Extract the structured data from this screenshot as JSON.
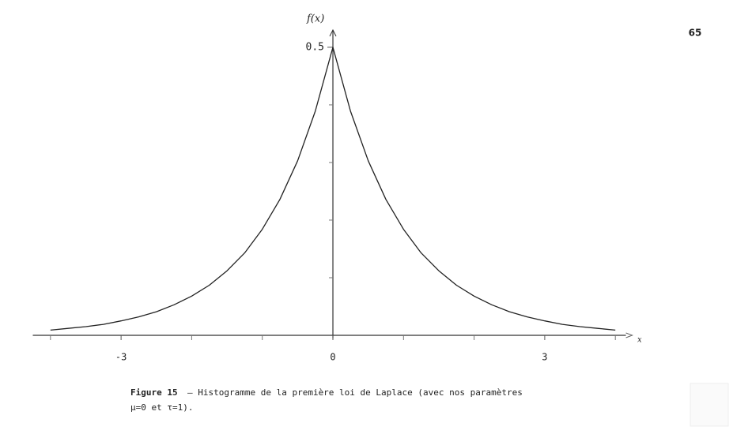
{
  "page_number": "65",
  "chart_data": {
    "type": "line",
    "ylabel": "f(x)",
    "xlabel": "x",
    "x": [
      -4,
      -3.75,
      -3.5,
      -3.25,
      -3,
      -2.75,
      -2.5,
      -2.25,
      -2,
      -1.75,
      -1.5,
      -1.25,
      -1,
      -0.75,
      -0.5,
      -0.25,
      0,
      0.25,
      0.5,
      0.75,
      1,
      1.25,
      1.5,
      1.75,
      2,
      2.25,
      2.5,
      2.75,
      3,
      3.25,
      3.5,
      3.75,
      4
    ],
    "values": [
      0.009,
      0.012,
      0.015,
      0.019,
      0.025,
      0.032,
      0.041,
      0.053,
      0.068,
      0.087,
      0.112,
      0.143,
      0.184,
      0.236,
      0.303,
      0.389,
      0.5,
      0.389,
      0.303,
      0.236,
      0.184,
      0.143,
      0.112,
      0.087,
      0.068,
      0.053,
      0.041,
      0.032,
      0.025,
      0.019,
      0.015,
      0.012,
      0.009
    ],
    "color": "#222222",
    "xlim": [
      -4.25,
      4.15
    ],
    "ylim": [
      0,
      0.53
    ],
    "xticks": [
      -3,
      0,
      3
    ],
    "xminorticks": [
      -4,
      -2,
      -1,
      1,
      2,
      4
    ],
    "yticks": [
      0.5
    ],
    "yminorticks": [
      0.1,
      0.2,
      0.3,
      0.4
    ]
  },
  "caption": {
    "label": "Figure 15",
    "lines": [
      "— Histogramme de la première loi de Laplace (avec nos paramètres",
      "μ=0 et τ=1)."
    ]
  }
}
